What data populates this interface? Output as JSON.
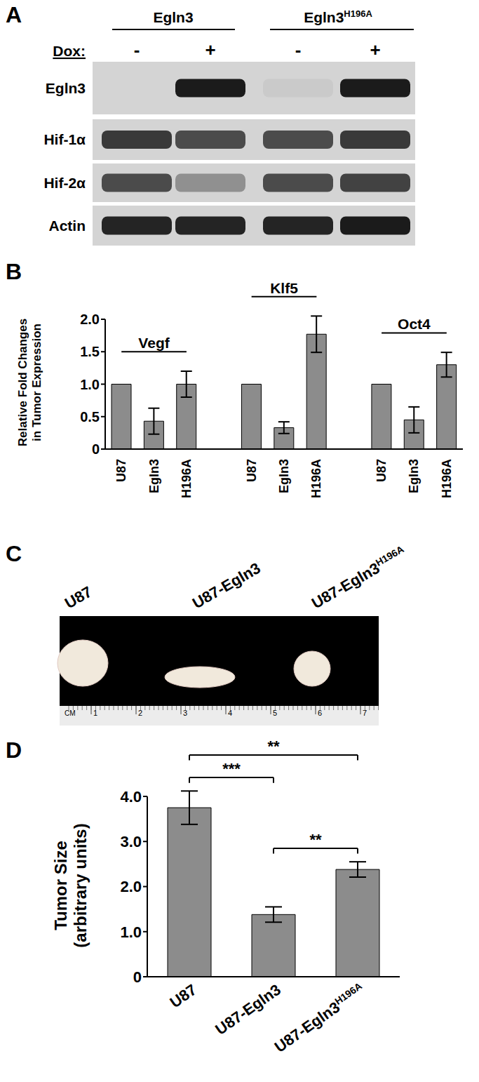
{
  "panels": {
    "a": {
      "label": "A",
      "dox_label": "Dox:",
      "columns": [
        {
          "name": "Egln3",
          "dox": [
            "-",
            "+"
          ]
        },
        {
          "name": "Egln3H196A",
          "dox": [
            "-",
            "+"
          ]
        }
      ],
      "rows": [
        {
          "name": "Egln3",
          "bands": [
            0,
            0.95,
            0.05,
            0.95
          ]
        },
        {
          "name": "Hif-1α",
          "bands": [
            0.8,
            0.7,
            0.7,
            0.8
          ]
        },
        {
          "name": "Hif-2α",
          "bands": [
            0.7,
            0.35,
            0.7,
            0.75
          ]
        },
        {
          "name": "Actin",
          "bands": [
            0.9,
            0.9,
            0.9,
            0.95
          ]
        }
      ]
    },
    "c": {
      "label": "C",
      "samples": [
        "U87",
        "U87-Egln3",
        "U87-Egln3H196A"
      ],
      "ruler": {
        "unit": "CM",
        "marks": [
          1,
          2,
          3,
          4,
          5,
          6,
          7
        ]
      }
    }
  },
  "chart_data": [
    {
      "type": "bar",
      "title": "B",
      "y_label": "Relative Fold Changes\nin Tumor Expression",
      "color": "#8c8c8c",
      "groups": [
        {
          "name": "Vegf",
          "categories": [
            "U87",
            "Egln3",
            "H196A"
          ],
          "values": [
            1,
            0.43,
            1.0
          ],
          "errors": [
            null,
            0.2,
            0.2
          ]
        },
        {
          "name": "Klf5",
          "categories": [
            "U87",
            "Egln3",
            "H196A"
          ],
          "values": [
            1,
            0.33,
            1.77
          ],
          "errors": [
            null,
            0.09,
            0.28
          ]
        },
        {
          "name": "Oct4",
          "categories": [
            "U87",
            "Egln3",
            "H196A"
          ],
          "values": [
            1,
            0.45,
            1.3
          ],
          "errors": [
            null,
            0.2,
            0.19
          ]
        }
      ],
      "ylim": [
        0,
        2
      ],
      "yticks": [
        0,
        0.5,
        {
          "value": 1,
          "label": "1.0"
        },
        1.5,
        {
          "value": 2,
          "label": "2.0"
        }
      ]
    },
    {
      "type": "bar",
      "title": "D",
      "y_label": "Tumor Size\n(arbitrary units)",
      "color": "#8c8c8c",
      "categories": [
        "U87",
        "U87-Egln3",
        "U87-Egln3H196A"
      ],
      "values": [
        3.75,
        1.38,
        2.38
      ],
      "errors": [
        0.37,
        0.17,
        0.17
      ],
      "ylim": [
        0,
        4
      ],
      "yticks": [
        0,
        {
          "value": 1,
          "label": "1.0"
        },
        {
          "value": 2,
          "label": "2.0"
        },
        {
          "value": 3,
          "label": "3.0"
        },
        {
          "value": 4,
          "label": "4.0"
        }
      ],
      "annotations": [
        {
          "from": "U87",
          "to": "U87-Egln3",
          "label": "***"
        },
        {
          "from": "U87",
          "to": "U87-Egln3H196A",
          "label": "**"
        },
        {
          "from": "U87-Egln3",
          "to": "U87-Egln3H196A",
          "label": "**"
        }
      ]
    }
  ]
}
